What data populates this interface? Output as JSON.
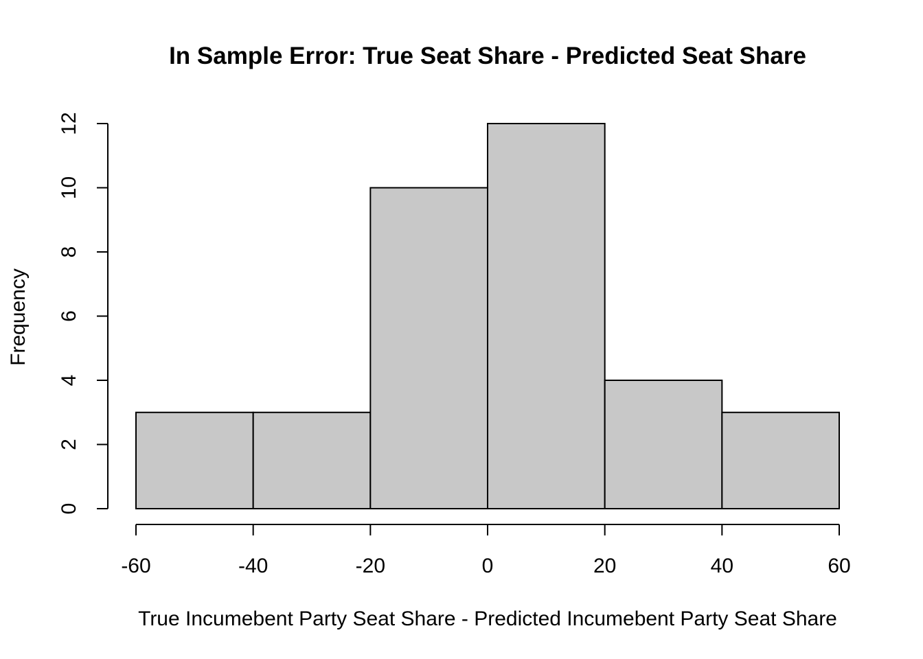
{
  "chart_data": {
    "type": "histogram",
    "title": "In Sample Error: True Seat Share - Predicted Seat Share",
    "xlabel": "True Incumebent Party Seat Share - Predicted Incumebent Party Seat Share",
    "ylabel": "Frequency",
    "bins": [
      {
        "start": -60,
        "end": -40,
        "count": 3
      },
      {
        "start": -40,
        "end": -20,
        "count": 3
      },
      {
        "start": -20,
        "end": 0,
        "count": 10
      },
      {
        "start": 0,
        "end": 20,
        "count": 12
      },
      {
        "start": 20,
        "end": 40,
        "count": 4
      },
      {
        "start": 40,
        "end": 60,
        "count": 3
      }
    ],
    "xlim": [
      -60,
      60
    ],
    "ylim": [
      0,
      12
    ],
    "x_ticks": [
      "-60",
      "-40",
      "-20",
      "0",
      "20",
      "40",
      "60"
    ],
    "y_ticks": [
      "0",
      "2",
      "4",
      "6",
      "8",
      "10",
      "12"
    ],
    "bar_color": "#c8c8c8",
    "grid": false
  }
}
